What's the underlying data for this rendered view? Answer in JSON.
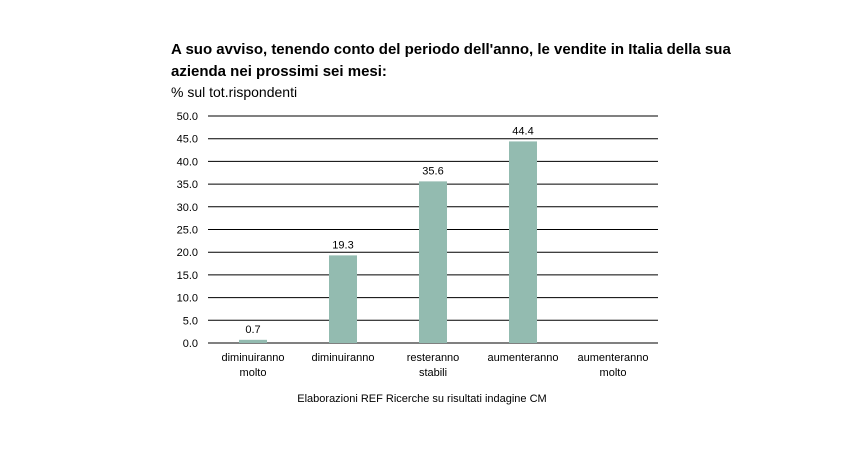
{
  "chart_data": {
    "type": "bar",
    "title": "A suo avviso, tenendo conto del periodo dell'anno, le vendite in Italia della sua azienda nei prossimi sei mesi:",
    "ylabel": "% sul tot.rispondenti",
    "xlabel": "",
    "categories": [
      [
        "diminuiranno",
        "molto"
      ],
      [
        "diminuiranno"
      ],
      [
        "resteranno",
        "stabili"
      ],
      [
        "aumenteranno"
      ],
      [
        "aumenteranno",
        "molto"
      ]
    ],
    "values": [
      0.7,
      19.3,
      35.6,
      44.4,
      null
    ],
    "data_labels": [
      "0.7",
      "19.3",
      "35.6",
      "44.4",
      ""
    ],
    "yticks": [
      "0.0",
      "5.0",
      "10.0",
      "15.0",
      "20.0",
      "25.0",
      "30.0",
      "35.0",
      "40.0",
      "45.0",
      "50.0"
    ],
    "ylim": [
      0,
      50
    ],
    "grid": true,
    "bar_color": "#93bbb0",
    "grid_color": "#000000",
    "source": "Elaborazioni REF Ricerche su risultati indagine CM"
  }
}
